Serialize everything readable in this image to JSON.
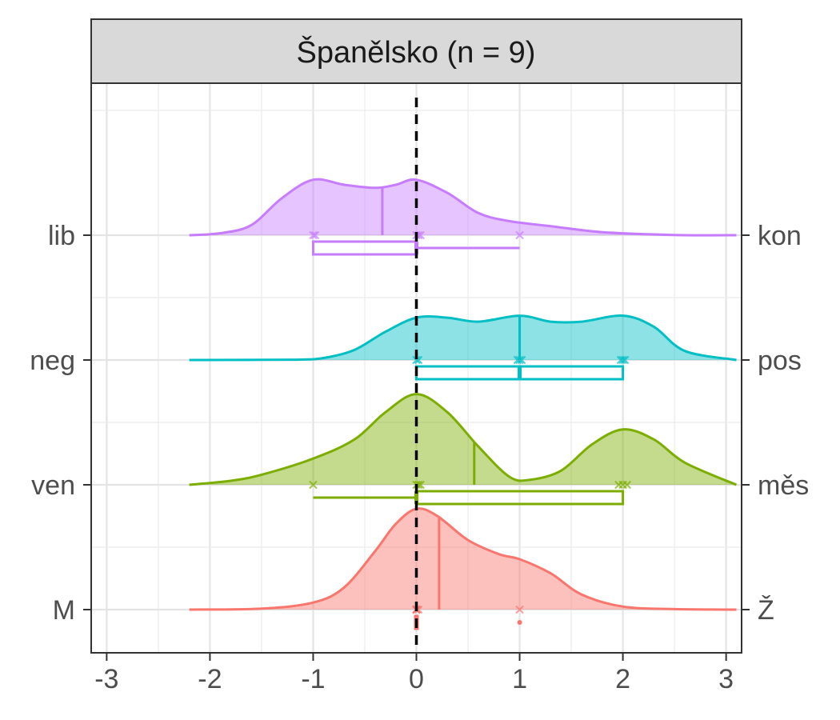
{
  "chart_data": {
    "type": "ridgeline",
    "title": "Španělsko (n = 9)",
    "xlabel": "",
    "ylabel": "",
    "xlim": [
      -3.15,
      3.15
    ],
    "x_ticks": [
      -3,
      -2,
      -1,
      0,
      1,
      2,
      3
    ],
    "x_tick_labels": [
      "-3",
      "-2",
      "-1",
      "0",
      "1",
      "2",
      "3"
    ],
    "reference_line_x": 0,
    "grid": true,
    "rows": [
      {
        "left_label": "M",
        "right_label": "Ž",
        "color": "#F8766D",
        "mean": 0.22,
        "points": [
          0,
          0,
          0,
          0,
          0,
          0,
          0,
          0.02,
          1
        ],
        "boxplot": {
          "min": 0,
          "q1": 0,
          "median": 0,
          "q3": 0,
          "max": 0,
          "outliers": [
            1
          ]
        },
        "density": {
          "x": [
            -2.2,
            -1.5,
            -1,
            -0.7,
            -0.4,
            -0.2,
            0,
            0.2,
            0.5,
            0.8,
            1,
            1.3,
            1.6,
            2,
            2.5,
            3.1
          ],
          "y": [
            0,
            0.01,
            0.07,
            0.22,
            0.58,
            0.85,
            1.0,
            0.93,
            0.69,
            0.55,
            0.5,
            0.36,
            0.15,
            0.03,
            0.005,
            0
          ]
        }
      },
      {
        "left_label": "ven",
        "right_label": "měs",
        "color": "#7CAE00",
        "mean": 0.56,
        "points": [
          -1,
          0,
          0.02,
          0.04,
          1.96,
          2,
          2.04
        ],
        "boxplot": {
          "min": -1,
          "q1": 0,
          "median": 0,
          "q3": 2,
          "max": 2,
          "outliers": []
        },
        "density": {
          "x": [
            -2.2,
            -1.8,
            -1.5,
            -1,
            -0.6,
            -0.3,
            0,
            0.3,
            0.6,
            0.9,
            1.1,
            1.4,
            1.7,
            2,
            2.3,
            2.6,
            3.1
          ],
          "y": [
            0,
            0.04,
            0.1,
            0.26,
            0.45,
            0.72,
            0.9,
            0.72,
            0.38,
            0.08,
            0.05,
            0.14,
            0.4,
            0.55,
            0.45,
            0.22,
            0
          ]
        }
      },
      {
        "left_label": "neg",
        "right_label": "pos",
        "color": "#00BFC4",
        "mean": 1.0,
        "points": [
          0,
          0.02,
          0.98,
          1,
          1.02,
          1.98,
          2,
          2.02
        ],
        "boxplot": {
          "min": 0,
          "q1": 0,
          "median": 1,
          "q3": 2,
          "max": 2,
          "outliers": []
        },
        "density": {
          "x": [
            -2.2,
            -1.2,
            -0.9,
            -0.6,
            -0.3,
            0,
            0.3,
            0.6,
            1,
            1.3,
            1.6,
            2,
            2.3,
            2.6,
            3.1
          ],
          "y": [
            0,
            0.003,
            0.02,
            0.1,
            0.28,
            0.42,
            0.42,
            0.38,
            0.44,
            0.38,
            0.38,
            0.44,
            0.33,
            0.09,
            0
          ]
        }
      },
      {
        "left_label": "lib",
        "right_label": "kon",
        "color": "#C77CFF",
        "mean": -0.33,
        "points": [
          -1,
          -0.98,
          0,
          0.02,
          0.04,
          1
        ],
        "boxplot": {
          "min": -1,
          "q1": -1,
          "median": 0,
          "q3": 0,
          "max": 1,
          "outliers": []
        },
        "density": {
          "x": [
            -2.2,
            -1.9,
            -1.6,
            -1.3,
            -1,
            -0.7,
            -0.4,
            -0.2,
            0,
            0.3,
            0.6,
            0.9,
            1.3,
            1.8,
            2.5,
            3.1
          ],
          "y": [
            0,
            0.02,
            0.1,
            0.37,
            0.55,
            0.5,
            0.47,
            0.5,
            0.55,
            0.42,
            0.22,
            0.14,
            0.09,
            0.03,
            0.002,
            0
          ]
        }
      }
    ]
  }
}
